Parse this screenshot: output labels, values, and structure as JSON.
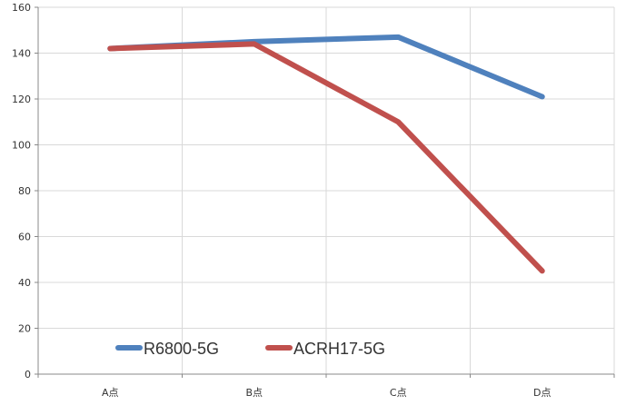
{
  "chart_data": {
    "type": "line",
    "categories": [
      "A点",
      "B点",
      "C点",
      "D点"
    ],
    "series": [
      {
        "name": "R6800-5G",
        "values": [
          142,
          145,
          147,
          121
        ],
        "color": "#4f81bd"
      },
      {
        "name": "ACRH17-5G",
        "values": [
          142,
          144,
          110,
          45
        ],
        "color": "#c0504d"
      }
    ],
    "title": "",
    "xlabel": "",
    "ylabel": "",
    "ylim": [
      0,
      160
    ],
    "yticks": [
      0,
      20,
      40,
      60,
      80,
      100,
      120,
      140,
      160
    ],
    "grid": true,
    "legend_position": "bottom-left"
  }
}
